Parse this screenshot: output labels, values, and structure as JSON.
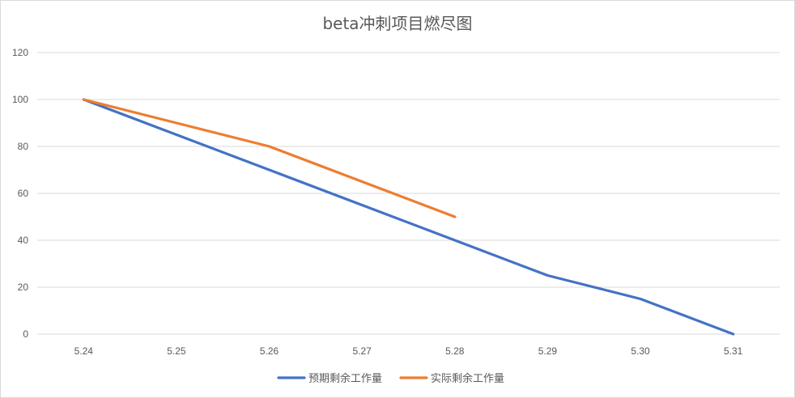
{
  "chart_data": {
    "type": "line",
    "title": "beta冲刺项目燃尽图",
    "xlabel": "",
    "ylabel": "",
    "categories": [
      "5.24",
      "5.25",
      "5.26",
      "5.27",
      "5.28",
      "5.29",
      "5.30",
      "5.31"
    ],
    "ylim": [
      0,
      120
    ],
    "yticks": [
      0,
      20,
      40,
      60,
      80,
      100,
      120
    ],
    "grid": true,
    "legend": "bottom",
    "series": [
      {
        "name": "预期剩余工作量",
        "color": "#4472C4",
        "values": [
          100,
          85,
          70,
          55,
          40,
          25,
          15,
          0
        ]
      },
      {
        "name": "实际剩余工作量",
        "color": "#ED7D31",
        "values": [
          100,
          90,
          80,
          65,
          50,
          null,
          null,
          null
        ]
      }
    ]
  }
}
